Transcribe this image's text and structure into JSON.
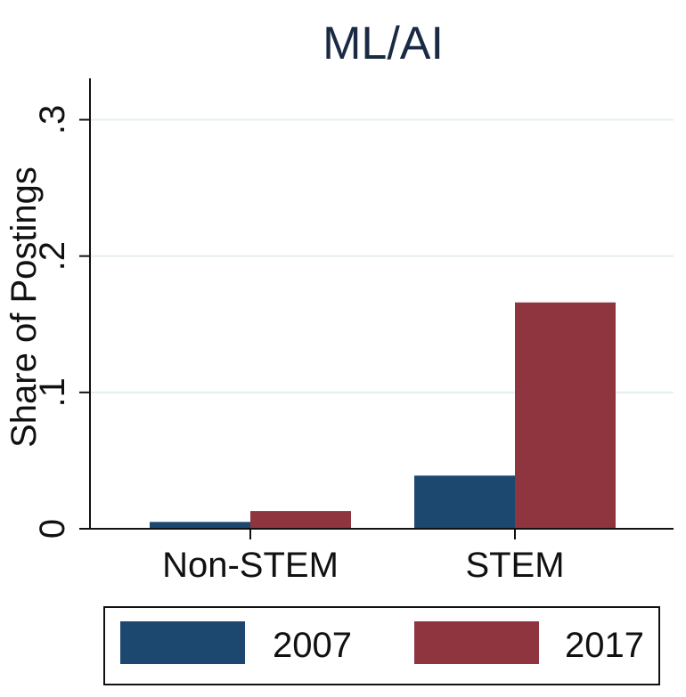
{
  "chart_data": {
    "type": "bar",
    "title": "ML/AI",
    "xlabel": "",
    "ylabel": "Share of Postings",
    "categories": [
      "Non-STEM",
      "STEM"
    ],
    "series": [
      {
        "name": "2007",
        "color": "#1c4870",
        "values": [
          0.005,
          0.039
        ]
      },
      {
        "name": "2017",
        "color": "#8e353f",
        "values": [
          0.013,
          0.166
        ]
      }
    ],
    "ylim": [
      0,
      0.3
    ],
    "yticks": [
      {
        "value": 0,
        "label": "0"
      },
      {
        "value": 0.1,
        "label": ".1"
      },
      {
        "value": 0.2,
        "label": ".2"
      },
      {
        "value": 0.3,
        "label": ".3"
      }
    ],
    "grid": true,
    "legend_position": "bottom"
  }
}
